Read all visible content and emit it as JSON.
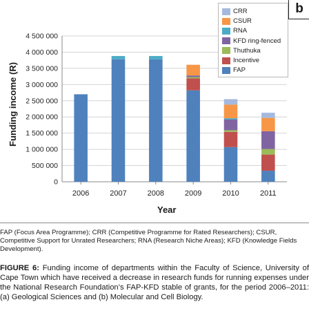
{
  "panel_label": "b",
  "chart_data": {
    "type": "bar",
    "stacked": true,
    "xlabel": "Year",
    "ylabel": "Funding income (R)",
    "ylim": [
      0,
      4500000
    ],
    "yticks": [
      0,
      500000,
      1000000,
      1500000,
      2000000,
      2500000,
      3000000,
      3500000,
      4000000,
      4500000
    ],
    "ytick_labels": [
      "0",
      "500 000",
      "1 000 000",
      "1 500 000",
      "2 000 000",
      "2 500 000",
      "3 000 000",
      "3 500 000",
      "4 000 000",
      "4 500 000"
    ],
    "grid": true,
    "legend_position": "top-right",
    "categories": [
      "2006",
      "2007",
      "2008",
      "2009",
      "2010",
      "2011"
    ],
    "series": [
      {
        "name": "FAP",
        "color": "#4f81bd",
        "values": [
          2700000,
          3780000,
          3780000,
          2820000,
          1070000,
          340000
        ]
      },
      {
        "name": "Incentive",
        "color": "#c0504d",
        "values": [
          0,
          0,
          0,
          370000,
          470000,
          500000
        ]
      },
      {
        "name": "Thuthuka",
        "color": "#9bbb59",
        "values": [
          0,
          0,
          0,
          40000,
          50000,
          170000
        ]
      },
      {
        "name": "KFD ring-fenced",
        "color": "#8064a2",
        "values": [
          0,
          0,
          0,
          50000,
          330000,
          550000
        ]
      },
      {
        "name": "RNA",
        "color": "#4bacc6",
        "values": [
          0,
          100000,
          100000,
          0,
          40000,
          0
        ]
      },
      {
        "name": "CSUR",
        "color": "#f79646",
        "values": [
          0,
          0,
          0,
          330000,
          420000,
          410000
        ]
      },
      {
        "name": "CRR",
        "color": "#a5b9de",
        "values": [
          0,
          0,
          0,
          0,
          170000,
          160000
        ]
      }
    ],
    "legend_order": [
      "CRR",
      "CSUR",
      "RNA",
      "KFD ring-fenced",
      "Thuthuka",
      "Incentive",
      "FAP"
    ]
  },
  "notes": "FAP (Focus Area Programme); CRR (Competitive Programme for Rated Researchers); CSUR, Competitive Support for Unrated Researchers; RNA (Research Niche Areas); KFD (Knowledge Fields Development).",
  "caption": {
    "label": "FIGURE 6:",
    "text": "Funding income of departments within the Faculty of Science, University of Cape Town which have received a decrease in research funds for running expenses under the National Research Foundation’s FAP-KFD stable of grants, for the period 2006–2011: (a) Geological Sciences and (b) Molecular and Cell Biology."
  }
}
